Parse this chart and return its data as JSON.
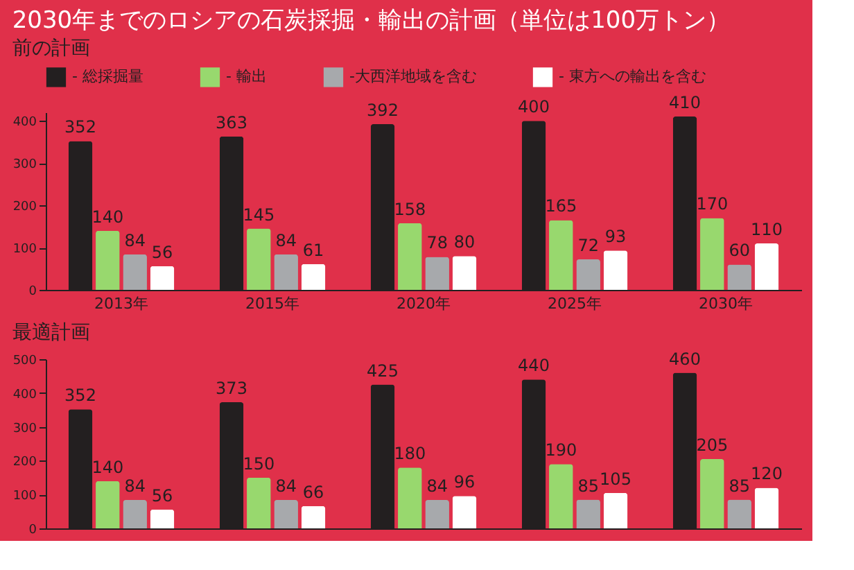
{
  "chart_data": [
    {
      "type": "bar",
      "title": "2030年までのロシアの石炭採掘・輸出の計画（単位は100万トン）",
      "subtitle": "前の計画",
      "categories": [
        "2013年",
        "2015年",
        "2020年",
        "2025年",
        "2030年"
      ],
      "series": [
        {
          "name": "- 総採掘量",
          "color": "#231f20",
          "values": [
            352,
            363,
            392,
            400,
            410
          ]
        },
        {
          "name": "- 輸出",
          "color": "#98d86e",
          "values": [
            140,
            145,
            158,
            165,
            170
          ]
        },
        {
          "name": "-大西洋地域を含む",
          "color": "#a7a9ac",
          "values": [
            84,
            84,
            78,
            72,
            60
          ]
        },
        {
          "name": "- 東方への輸出を含む",
          "color": "#ffffff",
          "values": [
            56,
            61,
            80,
            93,
            110
          ]
        }
      ],
      "ylim": [
        0,
        420
      ],
      "yticks": [
        0,
        100,
        200,
        300,
        400
      ],
      "data_labels": true,
      "legend": "top",
      "grid": false
    },
    {
      "type": "bar",
      "title": "最適計画",
      "categories": [
        null,
        null,
        null,
        null,
        null
      ],
      "tick_labels": "y",
      "series": [
        {
          "color": "#231f20",
          "values": [
            352,
            373,
            425,
            440,
            460
          ]
        },
        {
          "color": "#98d86e",
          "values": [
            140,
            150,
            180,
            190,
            205
          ]
        },
        {
          "color": "#a7a9ac",
          "values": [
            84,
            84,
            84,
            85,
            85
          ]
        },
        {
          "color": "#ffffff",
          "values": [
            56,
            66,
            96,
            105,
            120
          ]
        }
      ],
      "ylim": [
        0,
        500
      ],
      "yticks": [
        0,
        100,
        200,
        300,
        400,
        500
      ],
      "data_labels": true,
      "legend": false,
      "grid": false
    }
  ]
}
